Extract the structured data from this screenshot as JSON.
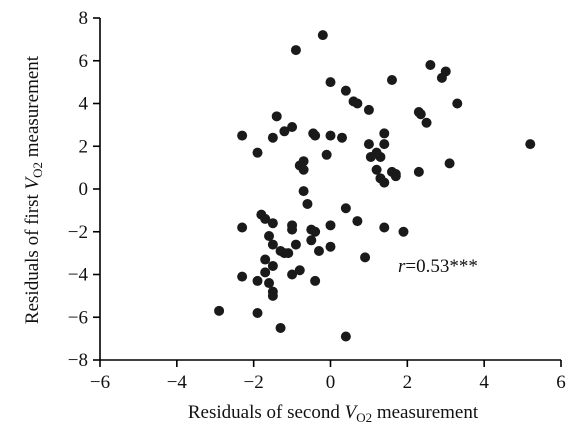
{
  "chart_data": {
    "type": "scatter",
    "xlabel": {
      "prefix": "Residuals of second ",
      "symbol": "V",
      "symbol_dot": "·",
      "sub": "O",
      "sub_num": "2",
      "suffix": " measurement"
    },
    "ylabel": {
      "prefix": "Residuals of first ",
      "symbol": "V",
      "symbol_dot": "·",
      "sub": "O",
      "sub_num": "2",
      "suffix": " measurement"
    },
    "xlim": [
      -6,
      6
    ],
    "ylim": [
      -8,
      8
    ],
    "xticks": [
      -6,
      -4,
      -2,
      0,
      2,
      4,
      6
    ],
    "yticks": [
      -8,
      -6,
      -4,
      -2,
      0,
      2,
      4,
      6,
      8
    ],
    "grid": false,
    "annotation": {
      "r_symbol": "r",
      "text": "=0.53***"
    },
    "x": [
      -0.9,
      -0.2,
      0.0,
      1.6,
      2.6,
      3.0,
      2.9,
      0.4,
      0.6,
      0.7,
      1.0,
      2.3,
      3.3,
      -2.3,
      -1.4,
      -1.5,
      -1.2,
      -1.0,
      -1.9,
      -0.7,
      -0.8,
      -0.7,
      -0.45,
      -0.4,
      -0.1,
      0.0,
      0.3,
      1.0,
      1.3,
      1.4,
      1.4,
      1.2,
      1.6,
      1.2,
      1.05,
      1.3,
      1.4,
      1.7,
      1.7,
      2.3,
      2.35,
      2.5,
      3.1,
      5.2,
      -0.7,
      -0.6,
      -1.8,
      -1.7,
      -1.5,
      -1.0,
      -1.0,
      -0.5,
      -0.4,
      -0.5,
      0.0,
      0.4,
      0.7,
      1.4,
      1.9,
      -2.3,
      -1.6,
      -1.5,
      -1.7,
      -1.2,
      -1.1,
      -0.9,
      -1.5,
      -1.3,
      -0.3,
      0.0,
      0.9,
      -2.3,
      -1.9,
      -1.6,
      -1.5,
      -1.0,
      -0.8,
      -1.7,
      -2.9,
      -1.9,
      -1.5,
      -0.4,
      -1.3,
      0.4
    ],
    "y": [
      6.5,
      7.2,
      5.0,
      5.1,
      5.8,
      5.5,
      5.2,
      4.6,
      4.1,
      4.0,
      3.7,
      3.6,
      4.0,
      2.5,
      3.4,
      2.4,
      2.7,
      2.9,
      1.7,
      1.3,
      1.1,
      0.9,
      2.6,
      2.5,
      1.6,
      2.5,
      2.4,
      2.1,
      1.5,
      2.6,
      2.1,
      1.7,
      0.8,
      0.9,
      1.5,
      0.5,
      0.3,
      0.7,
      0.6,
      0.8,
      3.5,
      3.1,
      1.2,
      2.1,
      -0.1,
      -0.7,
      -1.2,
      -1.4,
      -1.6,
      -1.7,
      -1.9,
      -1.9,
      -2.0,
      -2.4,
      -1.7,
      -0.9,
      -1.5,
      -1.8,
      -2.0,
      -1.8,
      -2.2,
      -2.6,
      -3.3,
      -3.0,
      -3.0,
      -2.6,
      -3.6,
      -2.9,
      -2.9,
      -2.7,
      -3.2,
      -4.1,
      -4.3,
      -4.4,
      -4.8,
      -4.0,
      -3.8,
      -3.9,
      -5.7,
      -5.8,
      -5.0,
      -4.3,
      -6.5,
      -6.9
    ]
  }
}
